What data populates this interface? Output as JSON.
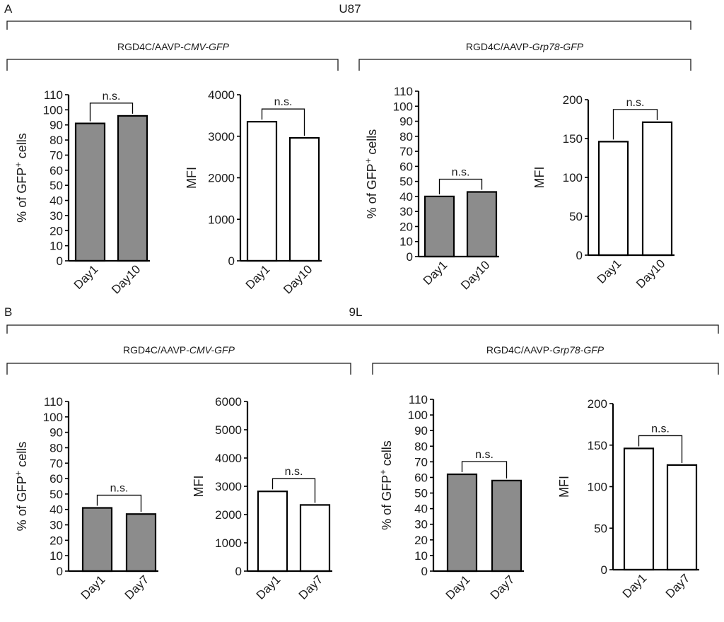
{
  "panels": [
    {
      "letter": "A",
      "cell_line": "U87",
      "groups": [
        {
          "vector_prefix": "RGD4C/AAVP-",
          "vector_promoter": "CMV-GFP",
          "charts": [
            0,
            1
          ]
        },
        {
          "vector_prefix": "RGD4C/AAVP-",
          "vector_promoter": "Grp78-GFP",
          "charts": [
            2,
            3
          ]
        }
      ]
    },
    {
      "letter": "B",
      "cell_line": "9L",
      "groups": [
        {
          "vector_prefix": "RGD4C/AAVP-",
          "vector_promoter": "CMV-GFP",
          "charts": [
            4,
            5
          ]
        },
        {
          "vector_prefix": "RGD4C/AAVP-",
          "vector_promoter": "Grp78-GFP",
          "charts": [
            6,
            7
          ]
        }
      ]
    }
  ],
  "colors": {
    "percent_bar_fill": "#8c8c8c",
    "mfi_bar_fill": "#ffffff",
    "ink": "#1a1a1a"
  },
  "chart_data": [
    {
      "type": "bar",
      "panel": "A",
      "cell_line": "U87",
      "vector": "RGD4C/AAVP-CMV-GFP",
      "ylabel_main": "% of GFP",
      "ylabel_sup": "+",
      "ylabel_tail": " cells",
      "categories": [
        "Day1",
        "Day10"
      ],
      "values": [
        91,
        96
      ],
      "ylim": [
        0,
        110
      ],
      "yticks": [
        0,
        10,
        20,
        30,
        40,
        50,
        60,
        70,
        80,
        90,
        100,
        110
      ],
      "fill": "gray",
      "significance": "n.s."
    },
    {
      "type": "bar",
      "panel": "A",
      "cell_line": "U87",
      "vector": "RGD4C/AAVP-CMV-GFP",
      "ylabel_main": "MFI",
      "ylabel_sup": "",
      "ylabel_tail": "",
      "categories": [
        "Day1",
        "Day10"
      ],
      "values": [
        3350,
        2960
      ],
      "ylim": [
        0,
        4000
      ],
      "yticks": [
        0,
        1000,
        2000,
        3000,
        4000
      ],
      "fill": "white",
      "significance": "n.s."
    },
    {
      "type": "bar",
      "panel": "A",
      "cell_line": "U87",
      "vector": "RGD4C/AAVP-Grp78-GFP",
      "ylabel_main": "% of GFP",
      "ylabel_sup": "+",
      "ylabel_tail": " cells",
      "categories": [
        "Day1",
        "Day10"
      ],
      "values": [
        40,
        43
      ],
      "ylim": [
        0,
        110
      ],
      "yticks": [
        0,
        10,
        20,
        30,
        40,
        50,
        60,
        70,
        80,
        90,
        100,
        110
      ],
      "fill": "gray",
      "significance": "n.s."
    },
    {
      "type": "bar",
      "panel": "A",
      "cell_line": "U87",
      "vector": "RGD4C/AAVP-Grp78-GFP",
      "ylabel_main": "MFI",
      "ylabel_sup": "",
      "ylabel_tail": "",
      "categories": [
        "Day1",
        "Day10"
      ],
      "values": [
        146,
        171
      ],
      "ylim": [
        0,
        200
      ],
      "yticks": [
        0,
        50,
        100,
        150,
        200
      ],
      "fill": "white",
      "significance": "n.s."
    },
    {
      "type": "bar",
      "panel": "B",
      "cell_line": "9L",
      "vector": "RGD4C/AAVP-CMV-GFP",
      "ylabel_main": "% of GFP",
      "ylabel_sup": "+",
      "ylabel_tail": " cells",
      "categories": [
        "Day1",
        "Day7"
      ],
      "values": [
        41,
        37
      ],
      "ylim": [
        0,
        110
      ],
      "yticks": [
        0,
        10,
        20,
        30,
        40,
        50,
        60,
        70,
        80,
        90,
        100,
        110
      ],
      "fill": "gray",
      "significance": "n.s."
    },
    {
      "type": "bar",
      "panel": "B",
      "cell_line": "9L",
      "vector": "RGD4C/AAVP-CMV-GFP",
      "ylabel_main": "MFI",
      "ylabel_sup": "",
      "ylabel_tail": "",
      "categories": [
        "Day1",
        "Day7"
      ],
      "values": [
        2820,
        2340
      ],
      "ylim": [
        0,
        6000
      ],
      "yticks": [
        0,
        1000,
        2000,
        3000,
        4000,
        5000,
        6000
      ],
      "fill": "white",
      "significance": "n.s."
    },
    {
      "type": "bar",
      "panel": "B",
      "cell_line": "9L",
      "vector": "RGD4C/AAVP-Grp78-GFP",
      "ylabel_main": "% of GFP",
      "ylabel_sup": "+",
      "ylabel_tail": " cells",
      "categories": [
        "Day1",
        "Day7"
      ],
      "values": [
        62,
        58
      ],
      "ylim": [
        0,
        110
      ],
      "yticks": [
        0,
        10,
        20,
        30,
        40,
        50,
        60,
        70,
        80,
        90,
        100,
        110
      ],
      "fill": "gray",
      "significance": "n.s."
    },
    {
      "type": "bar",
      "panel": "B",
      "cell_line": "9L",
      "vector": "RGD4C/AAVP-Grp78-GFP",
      "ylabel_main": "MFI",
      "ylabel_sup": "",
      "ylabel_tail": "",
      "categories": [
        "Day1",
        "Day7"
      ],
      "values": [
        146,
        126
      ],
      "ylim": [
        0,
        200
      ],
      "yticks": [
        0,
        50,
        100,
        150,
        200
      ],
      "fill": "white",
      "significance": "n.s."
    }
  ]
}
